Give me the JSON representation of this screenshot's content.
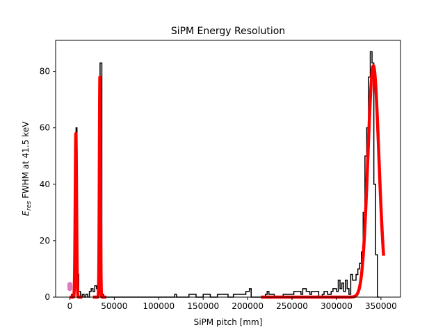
{
  "chart_data": {
    "type": "histogram",
    "title": "SiPM Energy Resolution",
    "xlabel": "SiPM pitch [mm]",
    "ylabel": {
      "main": "E",
      "sub": "res",
      "rest": " FWHM at 41.5 keV"
    },
    "xlim": [
      -16000,
      372000
    ],
    "ylim": [
      0,
      91
    ],
    "xticks": [
      0,
      50000,
      100000,
      150000,
      200000,
      250000,
      300000,
      350000
    ],
    "xtick_labels": [
      "0",
      "50000",
      "100000",
      "150000",
      "200000",
      "250000",
      "300000",
      "350000"
    ],
    "yticks": [
      0,
      20,
      40,
      60,
      80
    ],
    "ytick_labels": [
      "0",
      "20",
      "40",
      "60",
      "80"
    ],
    "grid": false,
    "histogram": {
      "color": "#000000",
      "bin_width": 2000,
      "bins": [
        {
          "x": 2000,
          "y": 1
        },
        {
          "x": 4000,
          "y": 4
        },
        {
          "x": 6000,
          "y": 20
        },
        {
          "x": 7000,
          "y": 60
        },
        {
          "x": 8000,
          "y": 8
        },
        {
          "x": 10000,
          "y": 2
        },
        {
          "x": 12000,
          "y": 0
        },
        {
          "x": 14000,
          "y": 1
        },
        {
          "x": 16000,
          "y": 0
        },
        {
          "x": 18000,
          "y": 1
        },
        {
          "x": 20000,
          "y": 0
        },
        {
          "x": 22000,
          "y": 2
        },
        {
          "x": 24000,
          "y": 3
        },
        {
          "x": 26000,
          "y": 2
        },
        {
          "x": 28000,
          "y": 4
        },
        {
          "x": 30000,
          "y": 3
        },
        {
          "x": 32000,
          "y": 6
        },
        {
          "x": 34000,
          "y": 83
        },
        {
          "x": 36000,
          "y": 1
        },
        {
          "x": 38000,
          "y": 0
        },
        {
          "x": 118000,
          "y": 1
        },
        {
          "x": 120000,
          "y": 0
        },
        {
          "x": 134000,
          "y": 1
        },
        {
          "x": 140000,
          "y": 1
        },
        {
          "x": 142000,
          "y": 0
        },
        {
          "x": 150000,
          "y": 1
        },
        {
          "x": 156000,
          "y": 1
        },
        {
          "x": 158000,
          "y": 0
        },
        {
          "x": 166000,
          "y": 1
        },
        {
          "x": 176000,
          "y": 1
        },
        {
          "x": 178000,
          "y": 0
        },
        {
          "x": 184000,
          "y": 1
        },
        {
          "x": 190000,
          "y": 1
        },
        {
          "x": 194000,
          "y": 1
        },
        {
          "x": 198000,
          "y": 2
        },
        {
          "x": 202000,
          "y": 3
        },
        {
          "x": 204000,
          "y": 0
        },
        {
          "x": 220000,
          "y": 1
        },
        {
          "x": 222000,
          "y": 2
        },
        {
          "x": 224000,
          "y": 1
        },
        {
          "x": 230000,
          "y": 0
        },
        {
          "x": 240000,
          "y": 1
        },
        {
          "x": 246000,
          "y": 1
        },
        {
          "x": 250000,
          "y": 1
        },
        {
          "x": 252000,
          "y": 2
        },
        {
          "x": 256000,
          "y": 2
        },
        {
          "x": 260000,
          "y": 1
        },
        {
          "x": 262000,
          "y": 3
        },
        {
          "x": 266000,
          "y": 2
        },
        {
          "x": 270000,
          "y": 1
        },
        {
          "x": 272000,
          "y": 2
        },
        {
          "x": 280000,
          "y": 0
        },
        {
          "x": 284000,
          "y": 1
        },
        {
          "x": 286000,
          "y": 2
        },
        {
          "x": 290000,
          "y": 1
        },
        {
          "x": 294000,
          "y": 2
        },
        {
          "x": 296000,
          "y": 3
        },
        {
          "x": 298000,
          "y": 3
        },
        {
          "x": 300000,
          "y": 2
        },
        {
          "x": 302000,
          "y": 6
        },
        {
          "x": 304000,
          "y": 3
        },
        {
          "x": 306000,
          "y": 5
        },
        {
          "x": 308000,
          "y": 2
        },
        {
          "x": 310000,
          "y": 6
        },
        {
          "x": 312000,
          "y": 3
        },
        {
          "x": 314000,
          "y": 1
        },
        {
          "x": 316000,
          "y": 8
        },
        {
          "x": 318000,
          "y": 6
        },
        {
          "x": 320000,
          "y": 6
        },
        {
          "x": 322000,
          "y": 8
        },
        {
          "x": 324000,
          "y": 10
        },
        {
          "x": 326000,
          "y": 12
        },
        {
          "x": 328000,
          "y": 16
        },
        {
          "x": 330000,
          "y": 30
        },
        {
          "x": 332000,
          "y": 50
        },
        {
          "x": 334000,
          "y": 60
        },
        {
          "x": 336000,
          "y": 78
        },
        {
          "x": 338000,
          "y": 87
        },
        {
          "x": 340000,
          "y": 83
        },
        {
          "x": 342000,
          "y": 40
        },
        {
          "x": 344000,
          "y": 15
        },
        {
          "x": 346000,
          "y": 0
        }
      ]
    },
    "fits": [
      {
        "color": "#ff0000",
        "amplitude": 58,
        "mean": 6800,
        "sigma": 750,
        "x_range": [
          0,
          14000
        ]
      },
      {
        "color": "#ff0000",
        "amplitude": 78,
        "mean": 33800,
        "sigma": 600,
        "x_range": [
          26000,
          41000
        ]
      },
      {
        "color": "#ff0000",
        "amplitude": 82,
        "mean": 341500,
        "sigma": 6200,
        "x_range": [
          215000,
          353000
        ]
      }
    ],
    "marker": {
      "color": "#e377c2",
      "x": 0,
      "y_range": [
        3,
        4.5
      ]
    }
  }
}
